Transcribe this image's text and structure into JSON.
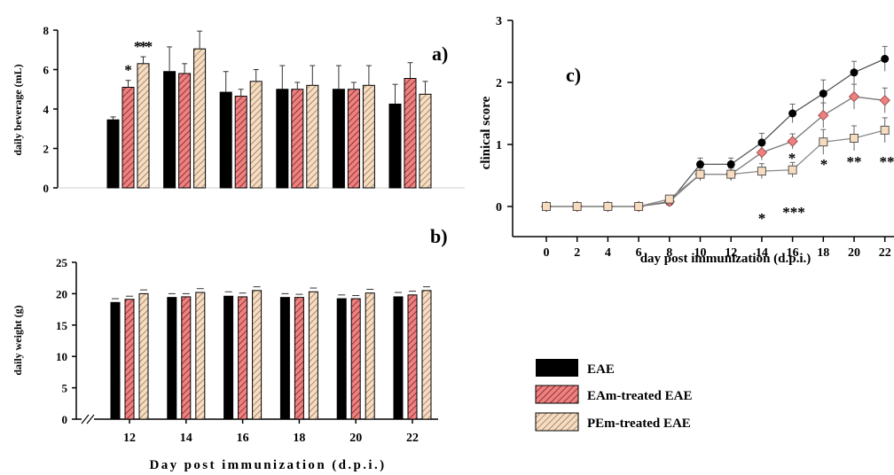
{
  "legend": {
    "items": [
      {
        "label": "EAE",
        "color": "#000000",
        "pattern": "solid"
      },
      {
        "label": "EAm-treated EAE",
        "color": "#f08080",
        "pattern": "hatch"
      },
      {
        "label": "PEm-treated EAE",
        "color": "#f7dcc0",
        "pattern": "hatch"
      }
    ]
  },
  "chart_data": [
    {
      "panel": "a)",
      "type": "bar",
      "title": "",
      "ylabel": "daily beverage (mL)",
      "xlabel": "",
      "ylim": [
        0,
        8
      ],
      "yticks": [
        0,
        2,
        4,
        6,
        8
      ],
      "groups": 6,
      "series": [
        {
          "name": "EAE",
          "values": [
            3.45,
            5.9,
            4.85,
            5.0,
            5.0,
            4.25
          ],
          "errors": [
            0.15,
            1.25,
            1.05,
            1.2,
            1.2,
            1.0
          ]
        },
        {
          "name": "EAm-treated EAE",
          "values": [
            5.1,
            5.8,
            4.65,
            5.0,
            5.0,
            5.55
          ],
          "errors": [
            0.35,
            0.5,
            0.35,
            0.35,
            0.35,
            0.8
          ]
        },
        {
          "name": "PEm-treated EAE",
          "values": [
            6.3,
            7.05,
            5.4,
            5.2,
            5.2,
            4.75
          ],
          "errors": [
            0.35,
            0.9,
            0.6,
            1.0,
            1.0,
            0.65
          ]
        }
      ],
      "annotations": [
        {
          "group": 0,
          "series": 1,
          "text": "*"
        },
        {
          "group": 0,
          "series": 2,
          "text": "*"
        },
        {
          "group": 0,
          "series": 2,
          "text": "* *"
        }
      ]
    },
    {
      "panel": "b)",
      "type": "bar",
      "title": "",
      "ylabel": "daily weight (g)",
      "xlabel": "Day post immunization (d.p.i.)",
      "ylim": [
        0,
        25
      ],
      "yticks": [
        0,
        5,
        10,
        15,
        20,
        25
      ],
      "categories": [
        "12",
        "14",
        "16",
        "18",
        "20",
        "22"
      ],
      "series": [
        {
          "name": "EAE",
          "values": [
            18.6,
            19.4,
            19.6,
            19.4,
            19.2,
            19.5
          ],
          "errors": [
            0.6,
            0.6,
            0.7,
            0.6,
            0.6,
            0.7
          ]
        },
        {
          "name": "EAm-treated EAE",
          "values": [
            19.1,
            19.5,
            19.5,
            19.4,
            19.2,
            19.8
          ],
          "errors": [
            0.5,
            0.5,
            0.6,
            0.5,
            0.5,
            0.6
          ]
        },
        {
          "name": "PEm-treated EAE",
          "values": [
            20.0,
            20.2,
            20.5,
            20.3,
            20.1,
            20.5
          ],
          "errors": [
            0.6,
            0.6,
            0.6,
            0.6,
            0.6,
            0.6
          ]
        }
      ]
    },
    {
      "panel": "c)",
      "type": "line",
      "title": "",
      "ylabel": "clinical score",
      "xlabel": "day post immunization (d.p.i.)",
      "x": [
        0,
        2,
        4,
        6,
        8,
        10,
        12,
        14,
        16,
        18,
        20,
        22
      ],
      "xlim": [
        -2,
        22
      ],
      "ylim": [
        -0.5,
        3
      ],
      "yticks": [
        0,
        1,
        2,
        3
      ],
      "series": [
        {
          "name": "EAE",
          "marker": "circle",
          "values": [
            0,
            0,
            0,
            0,
            0.07,
            0.68,
            0.68,
            1.03,
            1.5,
            1.82,
            2.16,
            2.38
          ],
          "errors": [
            0,
            0,
            0,
            0,
            0.03,
            0.1,
            0.1,
            0.15,
            0.15,
            0.22,
            0.18,
            0.2
          ]
        },
        {
          "name": "EAm-treated EAE",
          "marker": "diamond",
          "values": [
            0,
            0,
            0,
            0,
            0.08,
            0.52,
            0.52,
            0.87,
            1.05,
            1.47,
            1.77,
            1.71
          ],
          "errors": [
            0,
            0,
            0,
            0,
            0.03,
            0.1,
            0.1,
            0.12,
            0.12,
            0.2,
            0.2,
            0.2
          ]
        },
        {
          "name": "PEm-treated EAE",
          "marker": "square",
          "values": [
            0,
            0,
            0,
            0,
            0.12,
            0.52,
            0.52,
            0.57,
            0.59,
            1.04,
            1.1,
            1.23
          ],
          "errors": [
            0,
            0,
            0,
            0,
            0.03,
            0.1,
            0.1,
            0.12,
            0.12,
            0.2,
            0.2,
            0.2
          ]
        }
      ],
      "annotations": [
        {
          "x": 14,
          "text": "*"
        },
        {
          "x": 16,
          "text": "*"
        },
        {
          "x": 16,
          "text": "***"
        },
        {
          "x": 18,
          "text": "*"
        },
        {
          "x": 20,
          "text": "**"
        },
        {
          "x": 22,
          "text": "**"
        }
      ]
    }
  ]
}
